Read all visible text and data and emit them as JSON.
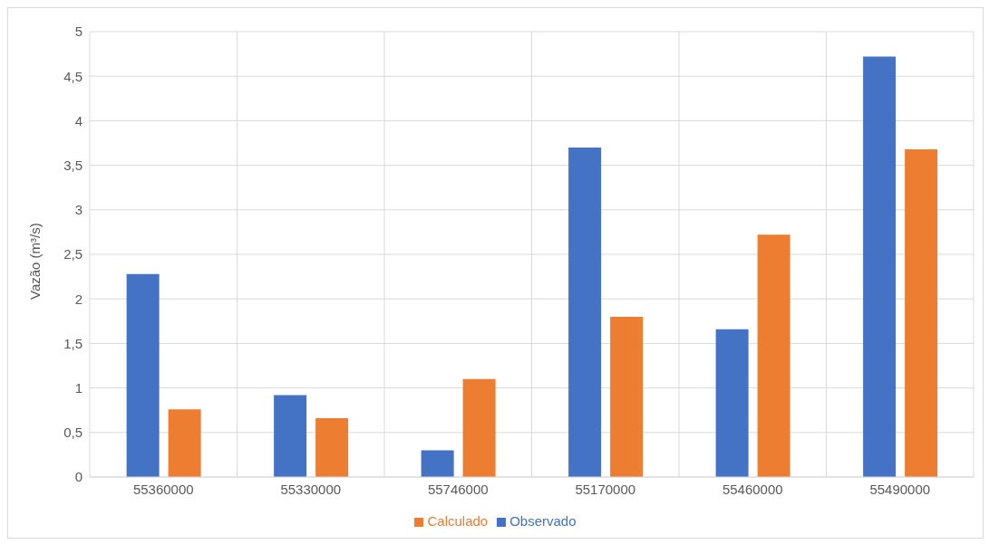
{
  "chart_data": {
    "type": "bar",
    "ylabel": "Vazão (m³/s)",
    "categories": [
      "55360000",
      "55330000",
      "55746000",
      "55170000",
      "55460000",
      "55490000"
    ],
    "series": [
      {
        "name": "Observado",
        "color": "#4472c4",
        "values": [
          2.28,
          0.92,
          0.3,
          3.7,
          1.66,
          4.72
        ]
      },
      {
        "name": "Calculado",
        "color": "#ed7d31",
        "values": [
          0.76,
          0.66,
          1.1,
          1.8,
          2.72,
          3.68
        ]
      }
    ],
    "ylim": [
      0,
      5
    ],
    "yticks": [
      0,
      {
        "value": 0.5,
        "label": "0,5"
      },
      1,
      {
        "value": 1.5,
        "label": "1,5"
      },
      2,
      {
        "value": 2.5,
        "label": "2,5"
      },
      3,
      {
        "value": 3.5,
        "label": "3,5"
      },
      4,
      {
        "value": 4.5,
        "label": "4,5"
      },
      5
    ],
    "grid": true,
    "legend": "bottom"
  }
}
